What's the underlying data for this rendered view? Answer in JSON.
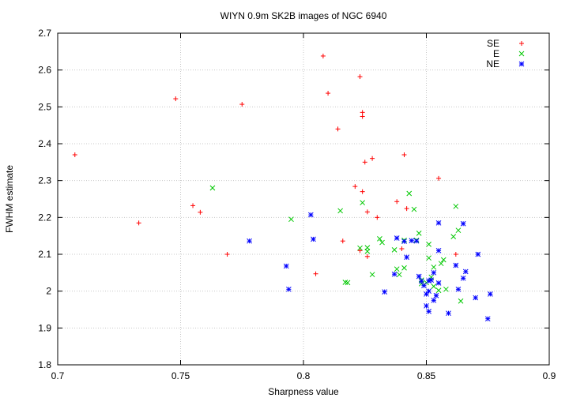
{
  "chart_data": {
    "type": "scatter",
    "title": "WIYN 0.9m SK2B images of NGC 6940",
    "xlabel": "Sharpness value",
    "ylabel": "FWHM estimate",
    "xlim": [
      0.7,
      0.9
    ],
    "ylim": [
      1.8,
      2.7
    ],
    "xticks": [
      "0.7",
      "0.75",
      "0.8",
      "0.85",
      "0.9"
    ],
    "yticks": [
      "1.8",
      "1.9",
      "2",
      "2.1",
      "2.2",
      "2.3",
      "2.4",
      "2.5",
      "2.6",
      "2.7"
    ],
    "grid": true,
    "legend_position": "top-right",
    "series": [
      {
        "name": "SE",
        "color": "#ff0000",
        "marker": "plus",
        "points": [
          [
            0.707,
            2.37
          ],
          [
            0.733,
            2.185
          ],
          [
            0.748,
            2.522
          ],
          [
            0.755,
            2.232
          ],
          [
            0.758,
            2.214
          ],
          [
            0.769,
            2.1
          ],
          [
            0.775,
            2.507
          ],
          [
            0.805,
            2.047
          ],
          [
            0.808,
            2.638
          ],
          [
            0.81,
            2.537
          ],
          [
            0.814,
            2.44
          ],
          [
            0.816,
            2.136
          ],
          [
            0.821,
            2.284
          ],
          [
            0.823,
            2.582
          ],
          [
            0.823,
            2.11
          ],
          [
            0.824,
            2.485
          ],
          [
            0.824,
            2.474
          ],
          [
            0.824,
            2.27
          ],
          [
            0.825,
            2.35
          ],
          [
            0.826,
            2.215
          ],
          [
            0.826,
            2.094
          ],
          [
            0.828,
            2.36
          ],
          [
            0.83,
            2.2
          ],
          [
            0.838,
            2.243
          ],
          [
            0.84,
            2.115
          ],
          [
            0.841,
            2.37
          ],
          [
            0.842,
            2.224
          ],
          [
            0.855,
            2.306
          ],
          [
            0.862,
            2.1
          ]
        ]
      },
      {
        "name": "E",
        "color": "#00c800",
        "marker": "x",
        "points": [
          [
            0.763,
            2.28
          ],
          [
            0.795,
            2.195
          ],
          [
            0.815,
            2.218
          ],
          [
            0.817,
            2.024
          ],
          [
            0.818,
            2.023
          ],
          [
            0.823,
            2.117
          ],
          [
            0.824,
            2.24
          ],
          [
            0.826,
            2.118
          ],
          [
            0.826,
            2.108
          ],
          [
            0.828,
            2.045
          ],
          [
            0.831,
            2.142
          ],
          [
            0.832,
            2.132
          ],
          [
            0.837,
            2.112
          ],
          [
            0.838,
            2.06
          ],
          [
            0.839,
            2.045
          ],
          [
            0.841,
            2.138
          ],
          [
            0.841,
            2.063
          ],
          [
            0.843,
            2.265
          ],
          [
            0.845,
            2.222
          ],
          [
            0.846,
            2.138
          ],
          [
            0.847,
            2.157
          ],
          [
            0.848,
            2.03
          ],
          [
            0.848,
            2.02
          ],
          [
            0.85,
            2.023
          ],
          [
            0.851,
            2.127
          ],
          [
            0.851,
            2.09
          ],
          [
            0.852,
            2.038
          ],
          [
            0.853,
            2.065
          ],
          [
            0.853,
            2.013
          ],
          [
            0.855,
            2.002
          ],
          [
            0.856,
            2.075
          ],
          [
            0.857,
            2.085
          ],
          [
            0.858,
            2.005
          ],
          [
            0.861,
            2.148
          ],
          [
            0.862,
            2.23
          ],
          [
            0.863,
            2.165
          ],
          [
            0.864,
            1.973
          ]
        ]
      },
      {
        "name": "NE",
        "color": "#0000ff",
        "marker": "star",
        "points": [
          [
            0.778,
            2.136
          ],
          [
            0.793,
            2.068
          ],
          [
            0.794,
            2.005
          ],
          [
            0.803,
            2.207
          ],
          [
            0.804,
            2.141
          ],
          [
            0.833,
            1.998
          ],
          [
            0.837,
            2.046
          ],
          [
            0.838,
            2.144
          ],
          [
            0.841,
            2.135
          ],
          [
            0.842,
            2.092
          ],
          [
            0.844,
            2.137
          ],
          [
            0.846,
            2.136
          ],
          [
            0.847,
            2.04
          ],
          [
            0.848,
            2.027
          ],
          [
            0.849,
            2.015
          ],
          [
            0.85,
            1.992
          ],
          [
            0.85,
            1.96
          ],
          [
            0.851,
            1.945
          ],
          [
            0.851,
            2.028
          ],
          [
            0.851,
            2.0
          ],
          [
            0.852,
            2.03
          ],
          [
            0.853,
            2.05
          ],
          [
            0.853,
            1.975
          ],
          [
            0.854,
            1.988
          ],
          [
            0.855,
            2.185
          ],
          [
            0.855,
            2.11
          ],
          [
            0.855,
            2.022
          ],
          [
            0.859,
            1.94
          ],
          [
            0.862,
            2.07
          ],
          [
            0.863,
            2.005
          ],
          [
            0.865,
            2.035
          ],
          [
            0.865,
            2.183
          ],
          [
            0.866,
            2.053
          ],
          [
            0.87,
            1.982
          ],
          [
            0.871,
            2.1
          ],
          [
            0.875,
            1.925
          ],
          [
            0.876,
            1.992
          ]
        ]
      }
    ]
  }
}
